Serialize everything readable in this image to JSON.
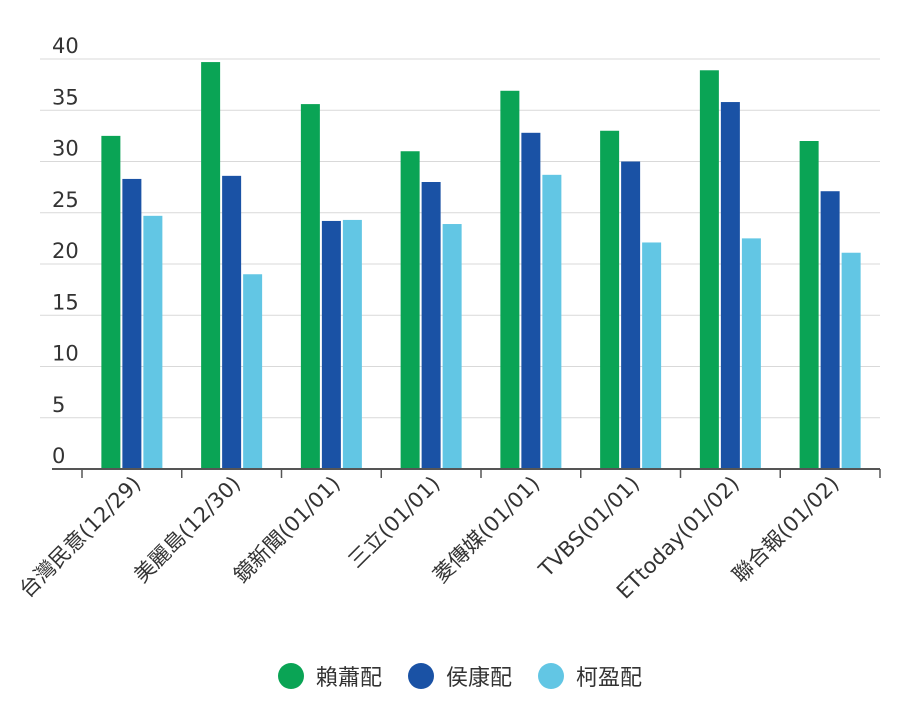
{
  "chart_data": {
    "type": "bar",
    "categories": [
      "台灣民意(12/29)",
      "美麗島(12/30)",
      "鏡新聞(01/01)",
      "三立(01/01)",
      "菱傳媒(01/01)",
      "TVBS(01/01)",
      "ETtoday(01/02)",
      "聯合報(01/02)"
    ],
    "series": [
      {
        "name": "賴蕭配",
        "color": "#0aa455",
        "values": [
          32.5,
          39.7,
          35.6,
          31.0,
          36.9,
          33.0,
          38.9,
          32.0
        ]
      },
      {
        "name": "侯康配",
        "color": "#1a52a5",
        "values": [
          28.3,
          28.6,
          24.2,
          28.0,
          32.8,
          30.0,
          35.8,
          27.1
        ]
      },
      {
        "name": "柯盈配",
        "color": "#62c6e4",
        "values": [
          24.7,
          19.0,
          24.3,
          23.9,
          28.7,
          22.1,
          22.5,
          21.1
        ]
      }
    ],
    "y_ticks": [
      "0",
      "5",
      "10",
      "15",
      "20",
      "25",
      "30",
      "35",
      "40"
    ],
    "ylim": [
      0,
      40
    ],
    "grid": true,
    "legend_position": "bottom-center",
    "title": "",
    "xlabel": "",
    "ylabel": ""
  }
}
